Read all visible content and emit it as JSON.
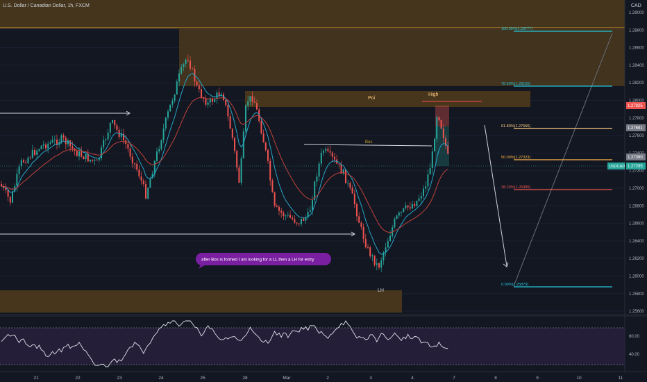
{
  "header": {
    "symbol_title": "U.S. Dollar / Canadian Dollar, 1h, FXCM",
    "currency": "CAD"
  },
  "colors": {
    "background": "#131722",
    "zone_fill": "#4a381c",
    "zone_border": "#a0742c",
    "bull_candle": "#26a69a",
    "bear_candle": "#ef5350",
    "ema_fast": "#26a6c8",
    "ema_slow": "#c2423c",
    "rsi_line": "#e0e3eb",
    "rsi_band": "#2a2140",
    "annotation_bubble": "#7b1fa2"
  },
  "price_axis": {
    "ticks": [
      "1.29000",
      "1.28800",
      "1.28600",
      "1.28400",
      "1.28200",
      "1.28000",
      "1.27800",
      "1.27600",
      "1.27400",
      "1.27200",
      "1.27000",
      "1.26800",
      "1.26600",
      "1.26400",
      "1.26200",
      "1.26000",
      "1.25800",
      "1.25600"
    ],
    "badges": [
      {
        "text": "1.27925",
        "color": "#ef5350"
      },
      {
        "text": "1.27691",
        "color": "#787b86"
      },
      {
        "text": "1.27360",
        "color": "#787b86"
      },
      {
        "text": "1.27295",
        "color": "#26a69a"
      }
    ],
    "left_badge": "USDCAD"
  },
  "rsi_axis": {
    "ticks": [
      "60.00",
      "40.00"
    ]
  },
  "time_axis": {
    "labels": [
      "21",
      "22",
      "23",
      "24",
      "25",
      "28",
      "Mar",
      "2",
      "3",
      "4",
      "7",
      "8",
      "9",
      "10",
      "11"
    ]
  },
  "fibonacci": [
    {
      "label": "100.00%(1.28777)",
      "color": "#26c6da"
    },
    {
      "label": "78.60%(1.28155)",
      "color": "#26c6da"
    },
    {
      "label": "61.80%(1.27666)",
      "color": "#ffcc80"
    },
    {
      "label": "50.00%(1.27323)",
      "color": "#ffb74d"
    },
    {
      "label": "38.20%(1.26980)",
      "color": "#ef5350"
    },
    {
      "label": "0.00%(1.25870)",
      "color": "#26c6da"
    }
  ],
  "annotations": {
    "poi": "Poi",
    "high": "High",
    "bos": "Bos",
    "lh": "LH",
    "bubble": "after Bos is formed I am  looking for a LL then a LH for entry"
  }
}
